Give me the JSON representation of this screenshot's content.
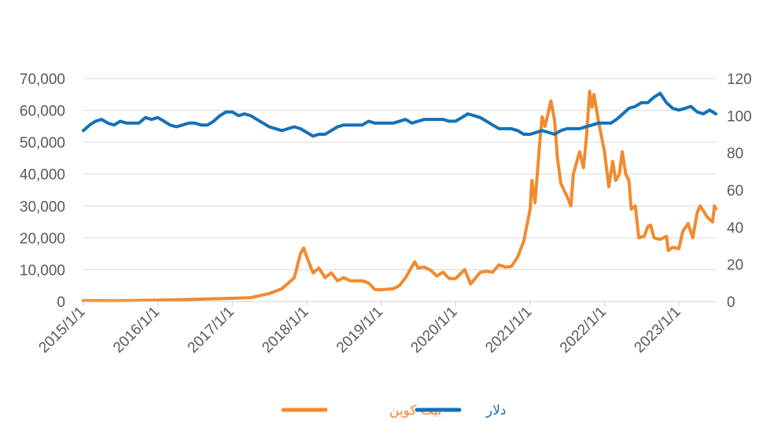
{
  "chart_data": {
    "type": "line",
    "title": "",
    "xlabel": "",
    "ylabel": "",
    "y_left_lim": [
      0,
      70000
    ],
    "y_right_lim": [
      0,
      120
    ],
    "y_left_ticks": [
      "0",
      "10,000",
      "20,000",
      "30,000",
      "40,000",
      "50,000",
      "60,000",
      "70,000"
    ],
    "y_right_ticks": [
      "0",
      "20",
      "40",
      "60",
      "80",
      "100",
      "120"
    ],
    "x_ticks": [
      "2015/1/1",
      "2016/1/1",
      "2017/1/1",
      "2018/1/1",
      "2019/1/1",
      "2020/1/1",
      "2021/1/1",
      "2022/1/1",
      "2023/1/1"
    ],
    "x_range": [
      "2015-01-01",
      "2023-07-01"
    ],
    "grid": "horizontal",
    "legend_position": "bottom",
    "series": [
      {
        "name": "بیت کوین",
        "axis": "left",
        "color": "#F28A2E",
        "points": [
          [
            "2015-01-01",
            300
          ],
          [
            "2015-06-01",
            230
          ],
          [
            "2016-01-01",
            430
          ],
          [
            "2016-06-01",
            650
          ],
          [
            "2017-01-01",
            1000
          ],
          [
            "2017-04-01",
            1200
          ],
          [
            "2017-07-01",
            2500
          ],
          [
            "2017-09-01",
            4000
          ],
          [
            "2017-11-01",
            7500
          ],
          [
            "2017-12-01",
            15000
          ],
          [
            "2017-12-17",
            16800
          ],
          [
            "2018-01-01",
            14000
          ],
          [
            "2018-02-01",
            9000
          ],
          [
            "2018-03-01",
            10500
          ],
          [
            "2018-04-01",
            7500
          ],
          [
            "2018-05-01",
            9000
          ],
          [
            "2018-06-01",
            6500
          ],
          [
            "2018-07-01",
            7500
          ],
          [
            "2018-08-01",
            6500
          ],
          [
            "2018-09-01",
            6500
          ],
          [
            "2018-10-01",
            6500
          ],
          [
            "2018-11-01",
            5800
          ],
          [
            "2018-12-01",
            3800
          ],
          [
            "2019-01-01",
            3700
          ],
          [
            "2019-03-01",
            4000
          ],
          [
            "2019-04-01",
            5000
          ],
          [
            "2019-05-01",
            7500
          ],
          [
            "2019-06-15",
            12500
          ],
          [
            "2019-07-01",
            10500
          ],
          [
            "2019-08-01",
            10800
          ],
          [
            "2019-09-01",
            9800
          ],
          [
            "2019-10-01",
            8000
          ],
          [
            "2019-11-01",
            9200
          ],
          [
            "2019-12-01",
            7200
          ],
          [
            "2020-01-01",
            7200
          ],
          [
            "2020-02-15",
            10000
          ],
          [
            "2020-03-15",
            5500
          ],
          [
            "2020-04-01",
            6800
          ],
          [
            "2020-05-01",
            9200
          ],
          [
            "2020-06-01",
            9500
          ],
          [
            "2020-07-01",
            9200
          ],
          [
            "2020-08-01",
            11500
          ],
          [
            "2020-09-01",
            10800
          ],
          [
            "2020-10-01",
            11000
          ],
          [
            "2020-11-01",
            14000
          ],
          [
            "2020-12-01",
            19000
          ],
          [
            "2021-01-01",
            29000
          ],
          [
            "2021-01-10",
            38000
          ],
          [
            "2021-01-25",
            31000
          ],
          [
            "2021-02-15",
            48000
          ],
          [
            "2021-03-01",
            58000
          ],
          [
            "2021-03-15",
            55000
          ],
          [
            "2021-04-13",
            63000
          ],
          [
            "2021-05-01",
            57000
          ],
          [
            "2021-05-15",
            45000
          ],
          [
            "2021-06-01",
            37000
          ],
          [
            "2021-07-01",
            33000
          ],
          [
            "2021-07-20",
            30000
          ],
          [
            "2021-08-01",
            40000
          ],
          [
            "2021-09-01",
            47000
          ],
          [
            "2021-09-20",
            42000
          ],
          [
            "2021-10-05",
            52000
          ],
          [
            "2021-10-20",
            66000
          ],
          [
            "2021-11-01",
            61000
          ],
          [
            "2021-11-10",
            65000
          ],
          [
            "2021-12-01",
            57000
          ],
          [
            "2022-01-01",
            47000
          ],
          [
            "2022-01-22",
            36000
          ],
          [
            "2022-02-10",
            44000
          ],
          [
            "2022-02-25",
            38000
          ],
          [
            "2022-03-15",
            40000
          ],
          [
            "2022-03-29",
            47000
          ],
          [
            "2022-04-15",
            40000
          ],
          [
            "2022-05-01",
            38000
          ],
          [
            "2022-05-12",
            29000
          ],
          [
            "2022-06-01",
            30000
          ],
          [
            "2022-06-18",
            20000
          ],
          [
            "2022-07-15",
            20500
          ],
          [
            "2022-08-01",
            23500
          ],
          [
            "2022-08-15",
            24000
          ],
          [
            "2022-09-01",
            20000
          ],
          [
            "2022-10-01",
            19500
          ],
          [
            "2022-11-01",
            20500
          ],
          [
            "2022-11-10",
            16000
          ],
          [
            "2022-12-01",
            17000
          ],
          [
            "2023-01-01",
            16600
          ],
          [
            "2023-01-20",
            22000
          ],
          [
            "2023-02-15",
            24500
          ],
          [
            "2023-03-10",
            20000
          ],
          [
            "2023-04-01",
            28000
          ],
          [
            "2023-04-15",
            30000
          ],
          [
            "2023-05-01",
            28500
          ],
          [
            "2023-05-20",
            26500
          ],
          [
            "2023-06-15",
            25000
          ],
          [
            "2023-06-25",
            30000
          ],
          [
            "2023-07-01",
            29000
          ]
        ]
      },
      {
        "name": "دلار",
        "axis": "right",
        "color": "#1471B8",
        "points": [
          [
            "2015-01-01",
            92
          ],
          [
            "2015-02-01",
            95
          ],
          [
            "2015-03-01",
            97
          ],
          [
            "2015-04-01",
            98
          ],
          [
            "2015-05-01",
            96
          ],
          [
            "2015-06-01",
            95
          ],
          [
            "2015-07-01",
            97
          ],
          [
            "2015-08-01",
            96
          ],
          [
            "2015-09-01",
            96
          ],
          [
            "2015-10-01",
            96
          ],
          [
            "2015-11-01",
            99
          ],
          [
            "2015-12-01",
            98
          ],
          [
            "2016-01-01",
            99
          ],
          [
            "2016-02-01",
            97
          ],
          [
            "2016-03-01",
            95
          ],
          [
            "2016-04-01",
            94
          ],
          [
            "2016-05-01",
            95
          ],
          [
            "2016-06-01",
            96
          ],
          [
            "2016-07-01",
            96
          ],
          [
            "2016-08-01",
            95
          ],
          [
            "2016-09-01",
            95
          ],
          [
            "2016-10-01",
            97
          ],
          [
            "2016-11-01",
            100
          ],
          [
            "2016-12-01",
            102
          ],
          [
            "2017-01-01",
            102
          ],
          [
            "2017-02-01",
            100
          ],
          [
            "2017-03-01",
            101
          ],
          [
            "2017-04-01",
            100
          ],
          [
            "2017-05-01",
            98
          ],
          [
            "2017-06-01",
            96
          ],
          [
            "2017-07-01",
            94
          ],
          [
            "2017-08-01",
            93
          ],
          [
            "2017-09-01",
            92
          ],
          [
            "2017-10-01",
            93
          ],
          [
            "2017-11-01",
            94
          ],
          [
            "2017-12-01",
            93
          ],
          [
            "2018-01-01",
            91
          ],
          [
            "2018-02-01",
            89
          ],
          [
            "2018-03-01",
            90
          ],
          [
            "2018-04-01",
            90
          ],
          [
            "2018-05-01",
            92
          ],
          [
            "2018-06-01",
            94
          ],
          [
            "2018-07-01",
            95
          ],
          [
            "2018-08-01",
            95
          ],
          [
            "2018-09-01",
            95
          ],
          [
            "2018-10-01",
            95
          ],
          [
            "2018-11-01",
            97
          ],
          [
            "2018-12-01",
            96
          ],
          [
            "2019-01-01",
            96
          ],
          [
            "2019-02-01",
            96
          ],
          [
            "2019-03-01",
            96
          ],
          [
            "2019-04-01",
            97
          ],
          [
            "2019-05-01",
            98
          ],
          [
            "2019-06-01",
            96
          ],
          [
            "2019-07-01",
            97
          ],
          [
            "2019-08-01",
            98
          ],
          [
            "2019-09-01",
            98
          ],
          [
            "2019-10-01",
            98
          ],
          [
            "2019-11-01",
            98
          ],
          [
            "2019-12-01",
            97
          ],
          [
            "2020-01-01",
            97
          ],
          [
            "2020-02-01",
            99
          ],
          [
            "2020-03-01",
            101
          ],
          [
            "2020-04-01",
            100
          ],
          [
            "2020-05-01",
            99
          ],
          [
            "2020-06-01",
            97
          ],
          [
            "2020-07-01",
            95
          ],
          [
            "2020-08-01",
            93
          ],
          [
            "2020-09-01",
            93
          ],
          [
            "2020-10-01",
            93
          ],
          [
            "2020-11-01",
            92
          ],
          [
            "2020-12-01",
            90
          ],
          [
            "2021-01-01",
            90
          ],
          [
            "2021-02-01",
            91
          ],
          [
            "2021-03-01",
            92
          ],
          [
            "2021-04-01",
            91
          ],
          [
            "2021-05-01",
            90
          ],
          [
            "2021-06-01",
            92
          ],
          [
            "2021-07-01",
            93
          ],
          [
            "2021-08-01",
            93
          ],
          [
            "2021-09-01",
            93
          ],
          [
            "2021-10-01",
            94
          ],
          [
            "2021-11-01",
            95
          ],
          [
            "2021-12-01",
            96
          ],
          [
            "2022-01-01",
            96
          ],
          [
            "2022-02-01",
            96
          ],
          [
            "2022-03-01",
            98
          ],
          [
            "2022-04-01",
            101
          ],
          [
            "2022-05-01",
            104
          ],
          [
            "2022-06-01",
            105
          ],
          [
            "2022-07-01",
            107
          ],
          [
            "2022-08-01",
            107
          ],
          [
            "2022-09-01",
            110
          ],
          [
            "2022-10-01",
            112
          ],
          [
            "2022-11-01",
            107
          ],
          [
            "2022-12-01",
            104
          ],
          [
            "2023-01-01",
            103
          ],
          [
            "2023-02-01",
            104
          ],
          [
            "2023-03-01",
            105
          ],
          [
            "2023-04-01",
            102
          ],
          [
            "2023-05-01",
            101
          ],
          [
            "2023-06-01",
            103
          ],
          [
            "2023-07-01",
            101
          ]
        ]
      }
    ]
  }
}
